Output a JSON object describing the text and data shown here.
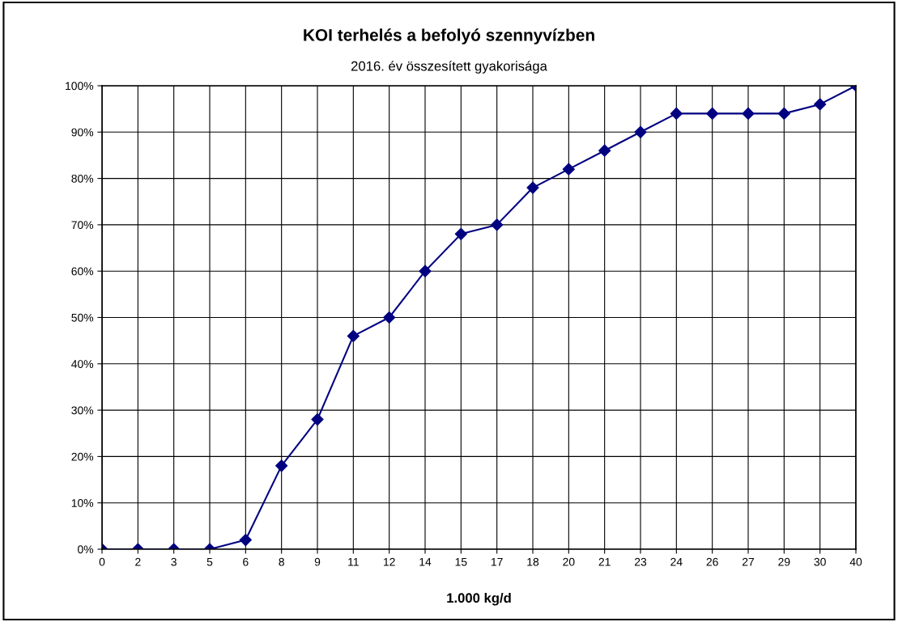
{
  "chart_data": {
    "type": "line",
    "title": "KOI terhelés a befolyó szennyvízben",
    "subtitle": "2016. év összesített gyakorisága",
    "xlabel": "1.000 kg/d",
    "categories": [
      "0",
      "2",
      "3",
      "5",
      "6",
      "8",
      "9",
      "11",
      "12",
      "14",
      "15",
      "17",
      "18",
      "20",
      "21",
      "23",
      "24",
      "26",
      "27",
      "29",
      "30",
      "40"
    ],
    "series": [
      {
        "color": "#000080",
        "values": [
          0,
          0,
          0,
          0,
          2,
          18,
          28,
          46,
          50,
          60,
          68,
          70,
          78,
          82,
          86,
          90,
          94,
          94,
          94,
          94,
          96,
          100
        ]
      }
    ],
    "ylim": [
      0,
      100
    ],
    "yticks": [
      {
        "value": 0,
        "label": "0%"
      },
      {
        "value": 10,
        "label": "10%"
      },
      {
        "value": 20,
        "label": "20%"
      },
      {
        "value": 30,
        "label": "30%"
      },
      {
        "value": 40,
        "label": "40%"
      },
      {
        "value": 50,
        "label": "50%"
      },
      {
        "value": 60,
        "label": "60%"
      },
      {
        "value": 70,
        "label": "70%"
      },
      {
        "value": 80,
        "label": "80%"
      },
      {
        "value": 90,
        "label": "90%"
      },
      {
        "value": 100,
        "label": "100%"
      }
    ],
    "grid": true,
    "marker": "diamond",
    "line_style": "solid"
  }
}
